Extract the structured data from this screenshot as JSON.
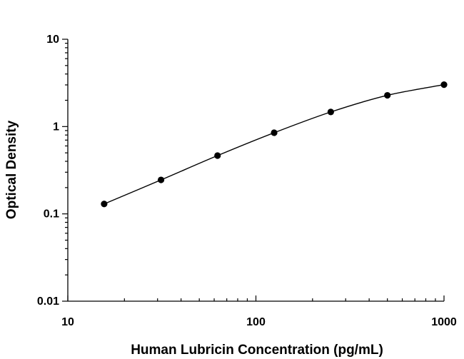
{
  "chart_data": {
    "type": "scatter",
    "title": "",
    "xlabel": "Human Lubricin Concentration (pg/mL)",
    "ylabel": "Optical Density",
    "xscale": "log",
    "yscale": "log",
    "xlim": [
      10,
      1000
    ],
    "ylim": [
      0.01,
      10
    ],
    "xticks": [
      "10",
      "100",
      "1000"
    ],
    "yticks": [
      "0.01",
      "0.1",
      "1",
      "10"
    ],
    "grid": false,
    "fit_curve": true,
    "series": [
      {
        "x": [
          15.6,
          31.3,
          62.5,
          125,
          250,
          500,
          1000
        ],
        "y": [
          0.13,
          0.245,
          0.465,
          0.85,
          1.47,
          2.28,
          3.02
        ]
      }
    ]
  }
}
